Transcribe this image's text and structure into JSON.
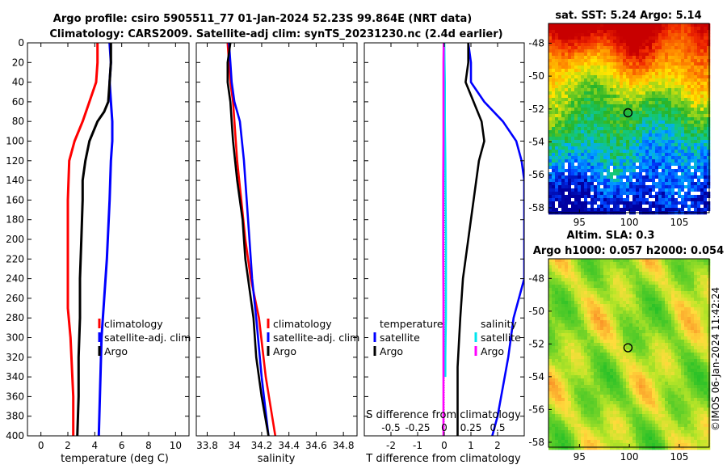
{
  "header": {
    "title_line1": "Argo profile: csiro 5905511_77 01-Jan-2024 52.23S 99.864E (NRT data)",
    "title_line2": "Climatology: CARS2009. Satellite-adj clim: synTS_20231230.nc (2.4d earlier)"
  },
  "colors": {
    "climatology": "#ff0000",
    "satellite": "#0000ff",
    "argo": "#000000",
    "cyan": "#00e5ee",
    "magenta": "#ff00ff"
  },
  "chart_data": [
    {
      "type": "line",
      "name": "temperature",
      "xlabel": "temperature (deg C)",
      "xlim": [
        -1,
        11
      ],
      "ylim": [
        400,
        0
      ],
      "xticks": [
        0,
        2,
        4,
        6,
        8,
        10
      ],
      "yticks": [
        0,
        20,
        40,
        60,
        80,
        100,
        120,
        140,
        160,
        180,
        200,
        220,
        240,
        260,
        280,
        300,
        320,
        340,
        360,
        380,
        400
      ],
      "legend": [
        "climatology",
        "satellite-adj. clim",
        "Argo"
      ],
      "series": [
        {
          "name": "climatology",
          "color": "#ff0000",
          "x": [
            4.2,
            4.2,
            4.1,
            3.6,
            3.1,
            2.5,
            2.1,
            2.0,
            2.0,
            2.0,
            2.0,
            2.2,
            2.4,
            2.4
          ],
          "y": [
            0,
            20,
            40,
            60,
            80,
            100,
            120,
            160,
            220,
            250,
            270,
            300,
            360,
            400
          ]
        },
        {
          "name": "satellite-adj. clim",
          "color": "#0000ff",
          "x": [
            5.1,
            5.2,
            5.1,
            5.2,
            5.3,
            5.3,
            5.2,
            5.1,
            4.9,
            4.7,
            4.5,
            4.4,
            4.3
          ],
          "y": [
            0,
            20,
            40,
            60,
            80,
            100,
            120,
            160,
            220,
            260,
            300,
            350,
            400
          ]
        },
        {
          "name": "Argo",
          "color": "#000000",
          "x": [
            5.2,
            5.2,
            5.1,
            5.0,
            4.7,
            4.2,
            3.6,
            3.3,
            3.1,
            3.1,
            3.0,
            2.9,
            2.9,
            2.8,
            2.8,
            2.7
          ],
          "y": [
            0,
            20,
            40,
            60,
            70,
            80,
            100,
            120,
            140,
            160,
            200,
            240,
            280,
            320,
            360,
            400
          ]
        }
      ]
    },
    {
      "type": "line",
      "name": "salinity",
      "xlabel": "salinity",
      "xlim": [
        33.72,
        34.9
      ],
      "ylim": [
        400,
        0
      ],
      "xticks": [
        33.8,
        34,
        34.2,
        34.4,
        34.6,
        34.8
      ],
      "legend": [
        "climatology",
        "satellite-adj. clim",
        "Argo"
      ],
      "series": [
        {
          "name": "climatology",
          "color": "#ff0000",
          "x": [
            33.95,
            33.96,
            33.97,
            33.99,
            34.0,
            34.02,
            34.05,
            34.08,
            34.12,
            34.18,
            34.23,
            34.3
          ],
          "y": [
            0,
            20,
            40,
            60,
            80,
            120,
            160,
            200,
            240,
            280,
            340,
            400
          ]
        },
        {
          "name": "satellite-adj. clim",
          "color": "#0000ff",
          "x": [
            33.96,
            33.97,
            33.98,
            34.0,
            34.04,
            34.07,
            34.09,
            34.11,
            34.13,
            34.16,
            34.2,
            34.25
          ],
          "y": [
            0,
            20,
            40,
            60,
            80,
            120,
            160,
            200,
            240,
            280,
            340,
            400
          ]
        },
        {
          "name": "Argo",
          "color": "#000000",
          "x": [
            33.97,
            33.95,
            33.95,
            33.97,
            33.98,
            33.99,
            34.02,
            34.06,
            34.08,
            34.1,
            34.14,
            34.16,
            34.2,
            34.25
          ],
          "y": [
            0,
            20,
            40,
            60,
            80,
            100,
            140,
            180,
            220,
            240,
            280,
            320,
            360,
            400
          ]
        }
      ]
    },
    {
      "type": "line",
      "name": "difference",
      "xlabel": "T difference from climatology",
      "xlabel_top": "S difference from climatology",
      "xlim": [
        -3,
        3
      ],
      "ylim": [
        400,
        0
      ],
      "xticks": [
        -2,
        -1,
        0,
        1,
        2
      ],
      "xticks_top": [
        -0.5,
        -0.25,
        0,
        0.25,
        0.5
      ],
      "xticks_top_labels": [
        "-0.5",
        "-0.25",
        "0",
        "0.25",
        "0.5"
      ],
      "legend_temperature": {
        "title": "temperature",
        "items": [
          "satellite",
          "Argo"
        ]
      },
      "legend_salinity": {
        "title": "salinity",
        "items": [
          "satellite",
          "Argo"
        ]
      },
      "series": [
        {
          "name": "T satellite",
          "color": "#0000ff",
          "x": [
            0.9,
            1.0,
            1.0,
            1.5,
            2.2,
            2.7,
            2.9,
            3.0,
            3.0,
            3.0,
            2.6,
            2.4,
            2.2,
            2.0,
            1.8
          ],
          "y": [
            0,
            20,
            40,
            60,
            80,
            100,
            120,
            140,
            180,
            240,
            280,
            320,
            350,
            380,
            400
          ]
        },
        {
          "name": "T Argo",
          "color": "#000000",
          "x": [
            0.9,
            0.9,
            0.8,
            1.1,
            1.4,
            1.5,
            1.3,
            1.2,
            1.1,
            1.0,
            0.9,
            0.7,
            0.6,
            0.5,
            0.5,
            0.5
          ],
          "y": [
            0,
            20,
            40,
            60,
            80,
            100,
            120,
            140,
            160,
            180,
            200,
            240,
            280,
            330,
            360,
            400
          ]
        },
        {
          "name": "S satellite",
          "color": "#00e5ee",
          "x": [
            0.0,
            0.01,
            0.02,
            0.02,
            0.04,
            0.05,
            0.06,
            0.06,
            0.06,
            0.05,
            0.04,
            0.04
          ],
          "y": [
            0,
            20,
            40,
            80,
            120,
            160,
            200,
            240,
            280,
            300,
            320,
            340
          ]
        },
        {
          "name": "S Argo",
          "color": "#ff00ff",
          "x": [
            -0.02,
            -0.03,
            -0.03,
            -0.03,
            -0.04,
            -0.04,
            -0.04,
            -0.03,
            -0.03,
            -0.03,
            -0.03,
            -0.03
          ],
          "y": [
            0,
            20,
            60,
            100,
            140,
            180,
            220,
            260,
            300,
            340,
            370,
            400
          ]
        }
      ]
    },
    {
      "type": "heatmap",
      "name": "sat_sst_map",
      "title": "sat. SST: 5.24  Argo: 5.14",
      "xlim": [
        91.9,
        108
      ],
      "ylim": [
        -58.3,
        -46.8
      ],
      "xticks": [
        95,
        100,
        105
      ],
      "yticks": [
        -48,
        -50,
        -52,
        -54,
        -56,
        -58
      ],
      "marker": {
        "lon": 99.864,
        "lat": -52.23
      }
    },
    {
      "type": "heatmap",
      "name": "altim_sla_map",
      "title_line1": "Altim. SLA: 0.3",
      "title_line2": "Argo h1000: 0.057 h2000: 0.054",
      "xlim": [
        91.9,
        108
      ],
      "ylim": [
        -58.3,
        -46.8
      ],
      "xticks": [
        95,
        100,
        105
      ],
      "yticks": [
        -48,
        -50,
        -52,
        -54,
        -56,
        -58
      ],
      "marker": {
        "lon": 99.864,
        "lat": -52.23
      }
    }
  ],
  "credit": "©IMOS 06-Jan-2024 11:42:24"
}
